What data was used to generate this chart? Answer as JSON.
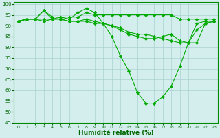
{
  "title": "",
  "xlabel": "Humidité relative (%)",
  "ylabel": "",
  "bg_color": "#d4eeee",
  "grid_color": "#aad0d0",
  "line_color": "#00aa00",
  "marker": "D",
  "marker_size": 2.2,
  "xlim": [
    -0.5,
    23.5
  ],
  "ylim": [
    45,
    101
  ],
  "yticks": [
    45,
    50,
    55,
    60,
    65,
    70,
    75,
    80,
    85,
    90,
    95,
    100
  ],
  "xticks": [
    0,
    1,
    2,
    3,
    4,
    5,
    6,
    7,
    8,
    9,
    10,
    11,
    12,
    13,
    14,
    15,
    16,
    17,
    18,
    19,
    20,
    21,
    22,
    23
  ],
  "series": [
    [
      92,
      93,
      93,
      97,
      93,
      94,
      93,
      96,
      98,
      96,
      91,
      85,
      76,
      69,
      59,
      54,
      54,
      57,
      62,
      71,
      82,
      91,
      92,
      92
    ],
    [
      92,
      93,
      93,
      97,
      94,
      94,
      94,
      94,
      96,
      95,
      95,
      95,
      95,
      95,
      95,
      95,
      95,
      95,
      95,
      93,
      93,
      93,
      93,
      93
    ],
    [
      92,
      93,
      93,
      93,
      93,
      93,
      92,
      92,
      93,
      92,
      91,
      90,
      89,
      87,
      86,
      86,
      85,
      84,
      83,
      82,
      82,
      82,
      91,
      92
    ],
    [
      92,
      93,
      93,
      92,
      93,
      93,
      92,
      92,
      92,
      91,
      91,
      90,
      88,
      86,
      85,
      84,
      84,
      85,
      86,
      83,
      82,
      88,
      91,
      92
    ]
  ],
  "show_markers": [
    true,
    true,
    true,
    true
  ]
}
